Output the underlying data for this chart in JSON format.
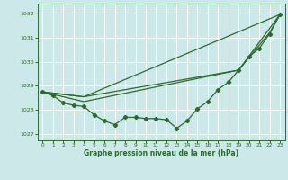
{
  "title": "Graphe pression niveau de la mer (hPa)",
  "bg_color": "#cce8e8",
  "grid_color": "#ffffff",
  "line_color": "#2d6a2d",
  "text_color": "#2d6a2d",
  "xlim": [
    -0.5,
    23.5
  ],
  "ylim": [
    1026.75,
    1032.4
  ],
  "yticks": [
    1027,
    1028,
    1029,
    1030,
    1031,
    1032
  ],
  "xticks": [
    0,
    1,
    2,
    3,
    4,
    5,
    6,
    7,
    8,
    9,
    10,
    11,
    12,
    13,
    14,
    15,
    16,
    17,
    18,
    19,
    20,
    21,
    22,
    23
  ],
  "line1_x": [
    0,
    1,
    2,
    3,
    4,
    5,
    6,
    7,
    8,
    9,
    10,
    11,
    12,
    13,
    14,
    15,
    16,
    17,
    18,
    19,
    20,
    21,
    22,
    23
  ],
  "line1_y": [
    1028.75,
    1028.6,
    1028.3,
    1028.2,
    1028.15,
    1027.8,
    1027.55,
    1027.4,
    1027.7,
    1027.7,
    1027.65,
    1027.65,
    1027.6,
    1027.25,
    1027.55,
    1028.05,
    1028.35,
    1028.85,
    1029.15,
    1029.65,
    1030.2,
    1030.55,
    1031.15,
    1031.95
  ],
  "line2_x": [
    0,
    4,
    23
  ],
  "line2_y": [
    1028.75,
    1028.55,
    1031.95
  ],
  "line3_x": [
    0,
    4,
    19,
    23
  ],
  "line3_y": [
    1028.75,
    1028.55,
    1029.65,
    1031.95
  ],
  "line4_x": [
    0,
    4,
    19,
    22,
    23
  ],
  "line4_y": [
    1028.75,
    1028.35,
    1029.65,
    1031.2,
    1031.95
  ]
}
